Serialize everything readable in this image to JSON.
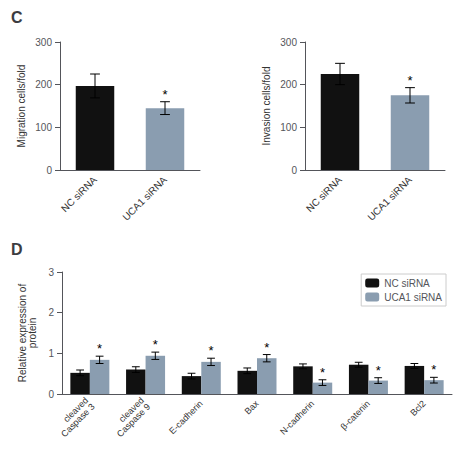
{
  "chart_data": [
    {
      "type": "bar",
      "title": "C",
      "categories": [
        "NC siRNA",
        "UCA1 siRNA"
      ],
      "values": [
        197,
        145
      ],
      "errors": [
        28,
        15
      ],
      "colors": [
        "#111111",
        "#8a9db0"
      ],
      "ylabel": "Migration cells/fold",
      "ylim": [
        0,
        300
      ],
      "yticks": [
        0,
        100,
        200,
        300
      ],
      "grid": false,
      "annotations": [
        {
          "text": "*",
          "category": "UCA1 siRNA"
        }
      ]
    },
    {
      "type": "bar",
      "categories": [
        "NC siRNA",
        "UCA1 siRNA"
      ],
      "values": [
        225,
        175
      ],
      "errors": [
        25,
        18
      ],
      "colors": [
        "#111111",
        "#8a9db0"
      ],
      "ylabel": "Invasion cells/fold",
      "ylim": [
        0,
        300
      ],
      "yticks": [
        0,
        100,
        200,
        300
      ],
      "grid": false,
      "annotations": [
        {
          "text": "*",
          "category": "UCA1 siRNA"
        }
      ]
    },
    {
      "type": "bar",
      "title": "D",
      "categories": [
        "cleaved\nCaspase 3",
        "cleaved\nCaspase 9",
        "E-cadherin",
        "Bax",
        "N-cadherin",
        "β-catenin",
        "Bcl2"
      ],
      "series": [
        {
          "name": "NC siRNA",
          "color": "#111111",
          "values": [
            0.52,
            0.6,
            0.44,
            0.57,
            0.68,
            0.72,
            0.69
          ],
          "errors": [
            0.07,
            0.07,
            0.07,
            0.07,
            0.06,
            0.06,
            0.06
          ]
        },
        {
          "name": "UCA1 siRNA",
          "color": "#8a9db0",
          "values": [
            0.84,
            0.94,
            0.79,
            0.88,
            0.28,
            0.33,
            0.34
          ],
          "errors": [
            0.09,
            0.09,
            0.09,
            0.09,
            0.07,
            0.07,
            0.07
          ]
        }
      ],
      "ylabel": "Relative expression of\nprotein",
      "ylim": [
        0,
        3
      ],
      "yticks": [
        0,
        1,
        2,
        3
      ],
      "grid": false,
      "legend": "upper right",
      "annotations": [
        {
          "text": "*",
          "series": "UCA1 siRNA",
          "category": "cleaved\nCaspase 3"
        },
        {
          "text": "*",
          "series": "UCA1 siRNA",
          "category": "cleaved\nCaspase 9"
        },
        {
          "text": "*",
          "series": "UCA1 siRNA",
          "category": "E-cadherin"
        },
        {
          "text": "*",
          "series": "UCA1 siRNA",
          "category": "Bax"
        },
        {
          "text": "*",
          "series": "UCA1 siRNA",
          "category": "N-cadherin"
        },
        {
          "text": "*",
          "series": "UCA1 siRNA",
          "category": "β-catenin"
        },
        {
          "text": "*",
          "series": "UCA1 siRNA",
          "category": "Bcl2"
        }
      ]
    }
  ]
}
